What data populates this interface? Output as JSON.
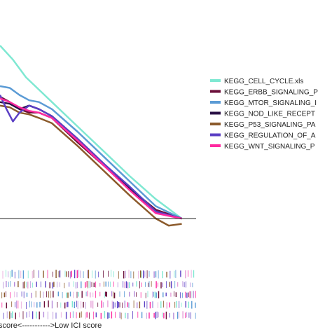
{
  "chart_data": {
    "type": "line",
    "title": "",
    "xlabel": "",
    "ylabel": "",
    "x_range": [
      0,
      300
    ],
    "y_range": [
      -0.06,
      1.0
    ],
    "zero_line": true,
    "grid": false,
    "legend_position": "right",
    "bottom_label": "score<----------->Low ICI score",
    "series": [
      {
        "name": "KEGG_CELL_CYCLE.xls",
        "color": "#7fe8d2",
        "x": [
          0,
          20,
          40,
          60,
          80,
          120,
          160,
          200,
          240,
          280
        ],
        "y": [
          0.98,
          0.9,
          0.8,
          0.73,
          0.66,
          0.52,
          0.38,
          0.24,
          0.11,
          0.0
        ]
      },
      {
        "name": "KEGG_ERBB_SIGNALING_P",
        "color": "#6b0f3a",
        "x": [
          0,
          15,
          30,
          45,
          60,
          80,
          120,
          160,
          200,
          240,
          280
        ],
        "y": [
          0.69,
          0.66,
          0.62,
          0.6,
          0.6,
          0.57,
          0.43,
          0.3,
          0.17,
          0.05,
          0.0
        ]
      },
      {
        "name": "KEGG_MTOR_SIGNALING_I",
        "color": "#5b9bd5",
        "x": [
          0,
          15,
          30,
          45,
          60,
          80,
          120,
          160,
          200,
          240,
          280
        ],
        "y": [
          0.75,
          0.74,
          0.7,
          0.67,
          0.66,
          0.62,
          0.49,
          0.35,
          0.21,
          0.07,
          0.0
        ]
      },
      {
        "name": "KEGG_NOD_LIKE_RECEPT",
        "color": "#2a1045",
        "x": [
          0,
          15,
          30,
          45,
          60,
          80,
          120,
          160,
          200,
          240,
          280
        ],
        "y": [
          0.66,
          0.65,
          0.62,
          0.64,
          0.62,
          0.58,
          0.45,
          0.31,
          0.17,
          0.04,
          0.0
        ]
      },
      {
        "name": "KEGG_P53_SIGNALING_PA",
        "color": "#8b5a2b",
        "x": [
          0,
          15,
          30,
          45,
          60,
          80,
          120,
          160,
          200,
          240,
          260,
          280
        ],
        "y": [
          0.64,
          0.63,
          0.6,
          0.59,
          0.57,
          0.54,
          0.41,
          0.27,
          0.13,
          0.0,
          -0.04,
          -0.03
        ]
      },
      {
        "name": "KEGG_REGULATION_OF_A",
        "color": "#5b3fc4",
        "x": [
          0,
          10,
          20,
          30,
          45,
          60,
          80,
          120,
          160,
          200,
          240,
          280
        ],
        "y": [
          0.7,
          0.62,
          0.55,
          0.6,
          0.64,
          0.62,
          0.58,
          0.45,
          0.31,
          0.18,
          0.04,
          0.0
        ]
      },
      {
        "name": "KEGG_WNT_SIGNALING_P",
        "color": "#ff2aa0",
        "x": [
          0,
          15,
          30,
          45,
          60,
          80,
          120,
          160,
          200,
          240,
          280
        ],
        "y": [
          0.68,
          0.66,
          0.63,
          0.61,
          0.6,
          0.57,
          0.44,
          0.3,
          0.16,
          0.03,
          0.0
        ]
      }
    ],
    "rug_colors": [
      "#b58ad9",
      "#e6a0d8",
      "#8b5a2b",
      "#5b3fc4",
      "#7fe8d2",
      "#6b0f3a",
      "#ff2aa0",
      "#5b9bd5"
    ]
  }
}
